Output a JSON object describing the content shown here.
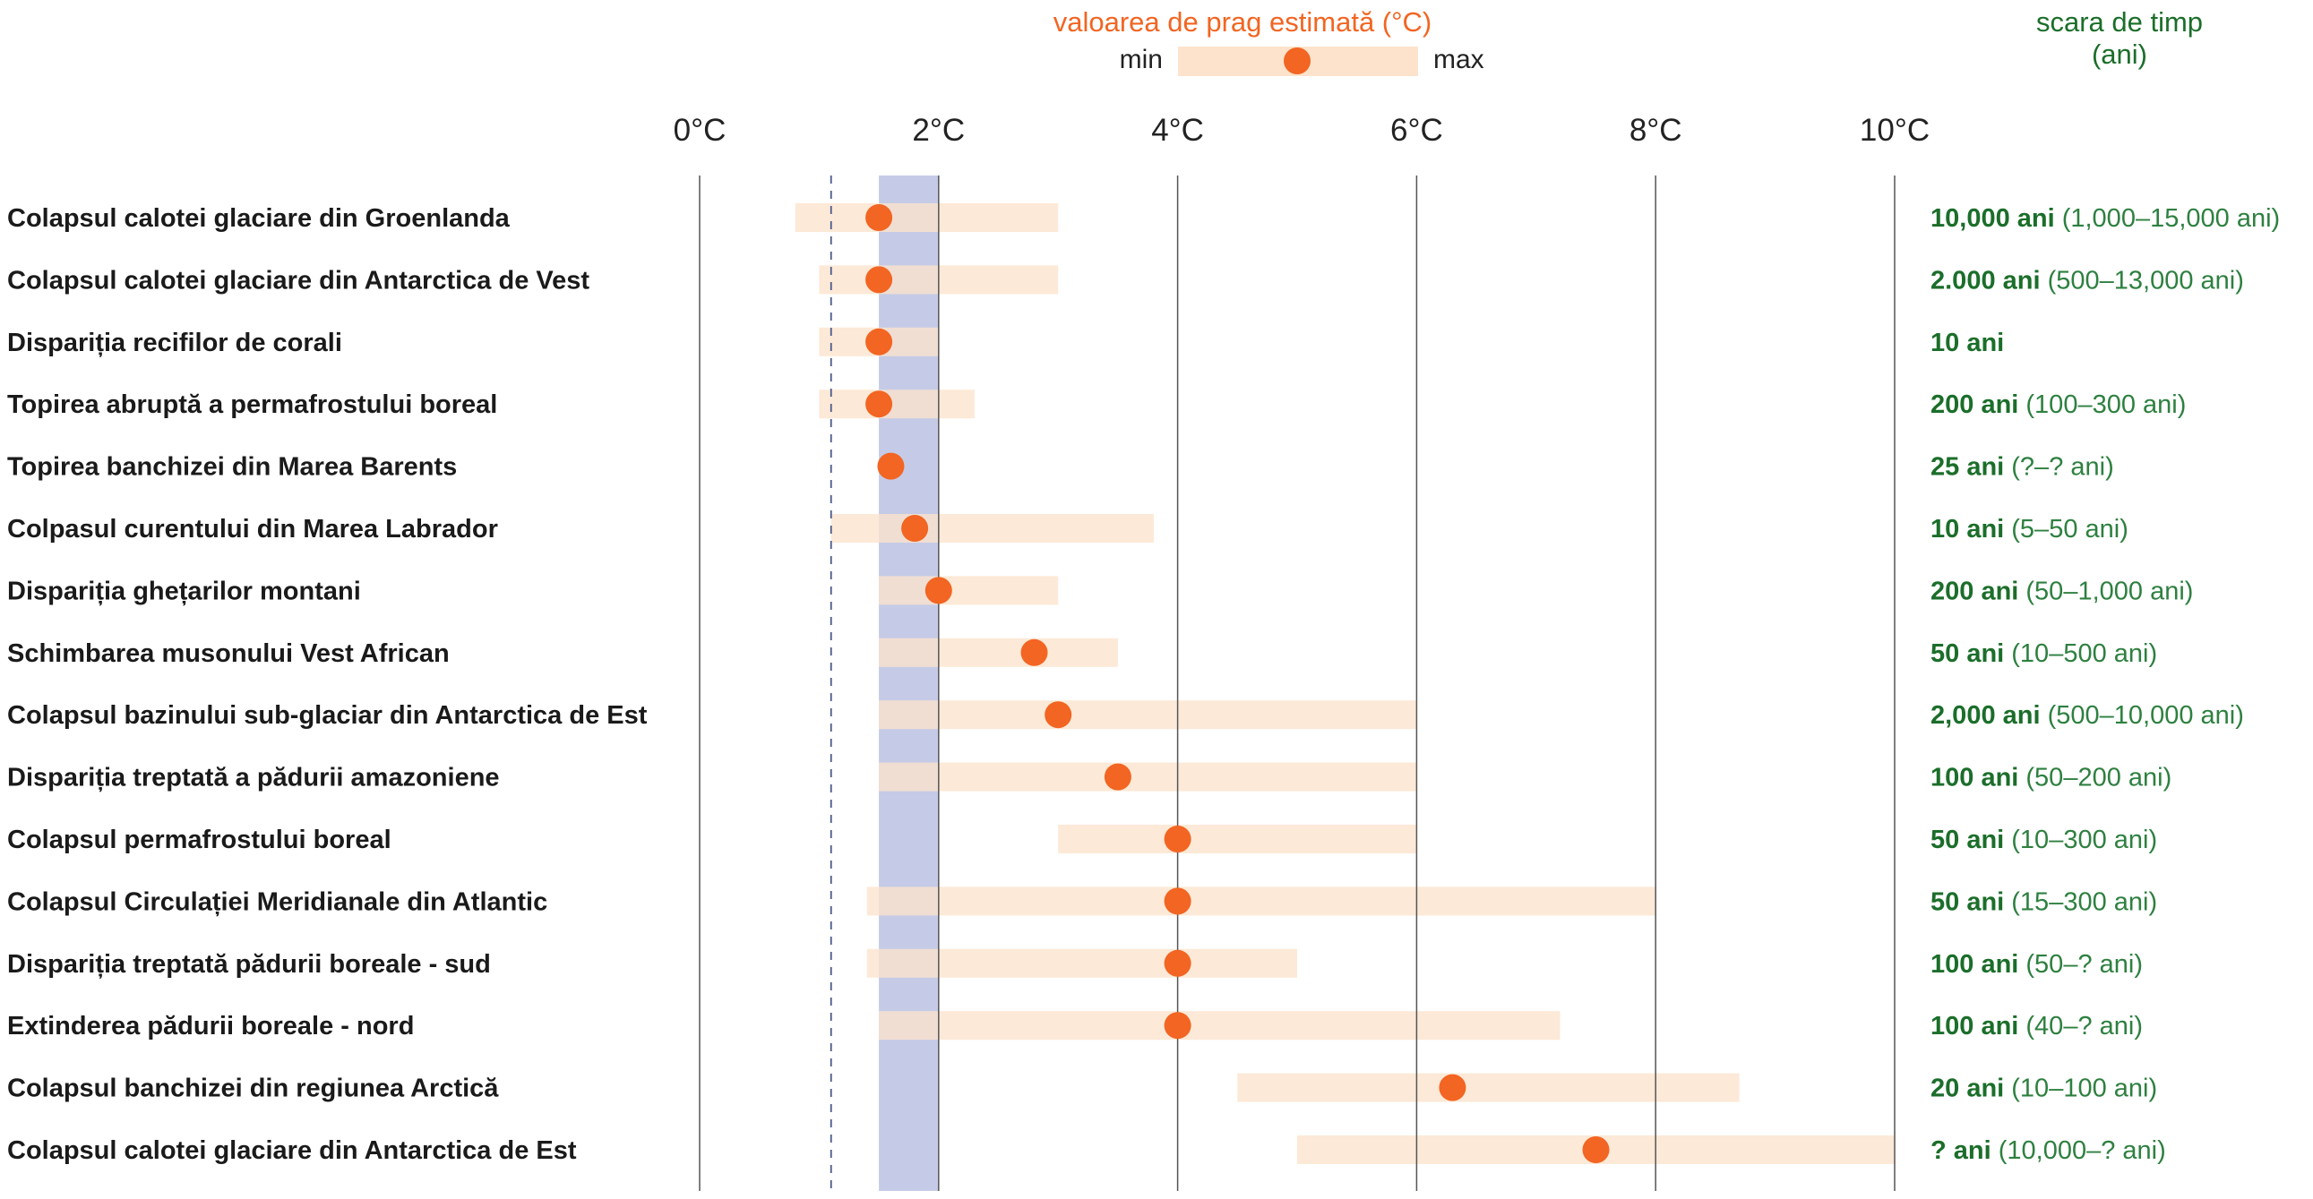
{
  "legend": {
    "title": "valoarea de prag estimată (°C)",
    "min_label": "min",
    "max_label": "max"
  },
  "timescale_header": {
    "line1": "scara de timp",
    "line2": "(ani)"
  },
  "colors": {
    "range_bar": "#fde3cc",
    "marker": "#f26522",
    "band": "#c5cbe6",
    "timescale_text": "#1b6e2a",
    "gridline": "#555555"
  },
  "chart_data": {
    "type": "range-dot",
    "xlim": [
      0,
      10
    ],
    "x_ticks": [
      {
        "value": 0,
        "label": "0°C"
      },
      {
        "value": 2,
        "label": "2°C"
      },
      {
        "value": 4,
        "label": "4°C"
      },
      {
        "value": 6,
        "label": "6°C"
      },
      {
        "value": 8,
        "label": "8°C"
      },
      {
        "value": 10,
        "label": "10°C"
      }
    ],
    "reference_band": [
      1.5,
      2.0
    ],
    "reference_line": 1.1,
    "items": [
      {
        "label": "Colapsul calotei glaciare din Groenlanda",
        "min": 0.8,
        "estimate": 1.5,
        "max": 3.0,
        "timescale": "10,000 ani",
        "timescale_range": "(1,000–15,000 ani)"
      },
      {
        "label": "Colapsul calotei glaciare din Antarctica de Vest",
        "min": 1.0,
        "estimate": 1.5,
        "max": 3.0,
        "timescale": "2.000 ani",
        "timescale_range": "(500–13,000 ani)"
      },
      {
        "label": "Dispariția recifilor de corali",
        "min": 1.0,
        "estimate": 1.5,
        "max": 2.0,
        "timescale": "10 ani",
        "timescale_range": ""
      },
      {
        "label": "Topirea abruptă a permafrostului boreal",
        "min": 1.0,
        "estimate": 1.5,
        "max": 2.3,
        "timescale": "200 ani",
        "timescale_range": "(100–300 ani)"
      },
      {
        "label": "Topirea banchizei din Marea Barents",
        "min": null,
        "estimate": 1.6,
        "max": null,
        "timescale": "25 ani",
        "timescale_range": "(?–? ani)"
      },
      {
        "label": "Colpasul curentului din Marea Labrador",
        "min": 1.1,
        "estimate": 1.8,
        "max": 3.8,
        "timescale": "10 ani",
        "timescale_range": "(5–50 ani)"
      },
      {
        "label": "Dispariția ghețarilor montani",
        "min": 1.5,
        "estimate": 2.0,
        "max": 3.0,
        "timescale": "200 ani",
        "timescale_range": "(50–1,000 ani)"
      },
      {
        "label": "Schimbarea musonului Vest African",
        "min": 1.5,
        "estimate": 2.8,
        "max": 3.5,
        "timescale": "50 ani",
        "timescale_range": "(10–500 ani)"
      },
      {
        "label": "Colapsul bazinului sub-glaciar din Antarctica de Est",
        "min": 1.5,
        "estimate": 3.0,
        "max": 6.0,
        "timescale": "2,000 ani",
        "timescale_range": "(500–10,000 ani)"
      },
      {
        "label": "Dispariția treptată a pădurii amazoniene",
        "min": 1.5,
        "estimate": 3.5,
        "max": 6.0,
        "timescale": "100 ani",
        "timescale_range": "(50–200 ani)"
      },
      {
        "label": "Colapsul permafrostului boreal",
        "min": 3.0,
        "estimate": 4.0,
        "max": 6.0,
        "timescale": "50 ani",
        "timescale_range": "(10–300 ani)"
      },
      {
        "label": "Colapsul Circulației Meridianale din Atlantic",
        "min": 1.4,
        "estimate": 4.0,
        "max": 8.0,
        "timescale": "50 ani",
        "timescale_range": "(15–300 ani)"
      },
      {
        "label": "Dispariția treptată pădurii boreale - sud",
        "min": 1.4,
        "estimate": 4.0,
        "max": 5.0,
        "timescale": "100 ani",
        "timescale_range": "(50–? ani)"
      },
      {
        "label": "Extinderea pădurii boreale - nord",
        "min": 1.5,
        "estimate": 4.0,
        "max": 7.2,
        "timescale": "100 ani",
        "timescale_range": "(40–? ani)"
      },
      {
        "label": "Colapsul banchizei din regiunea Arctică",
        "min": 4.5,
        "estimate": 6.3,
        "max": 8.7,
        "timescale": "20 ani",
        "timescale_range": "(10–100 ani)"
      },
      {
        "label": "Colapsul calotei glaciare din Antarctica de Est",
        "min": 5.0,
        "estimate": 7.5,
        "max": 10.0,
        "timescale": "? ani",
        "timescale_range": "(10,000–? ani)"
      }
    ]
  }
}
